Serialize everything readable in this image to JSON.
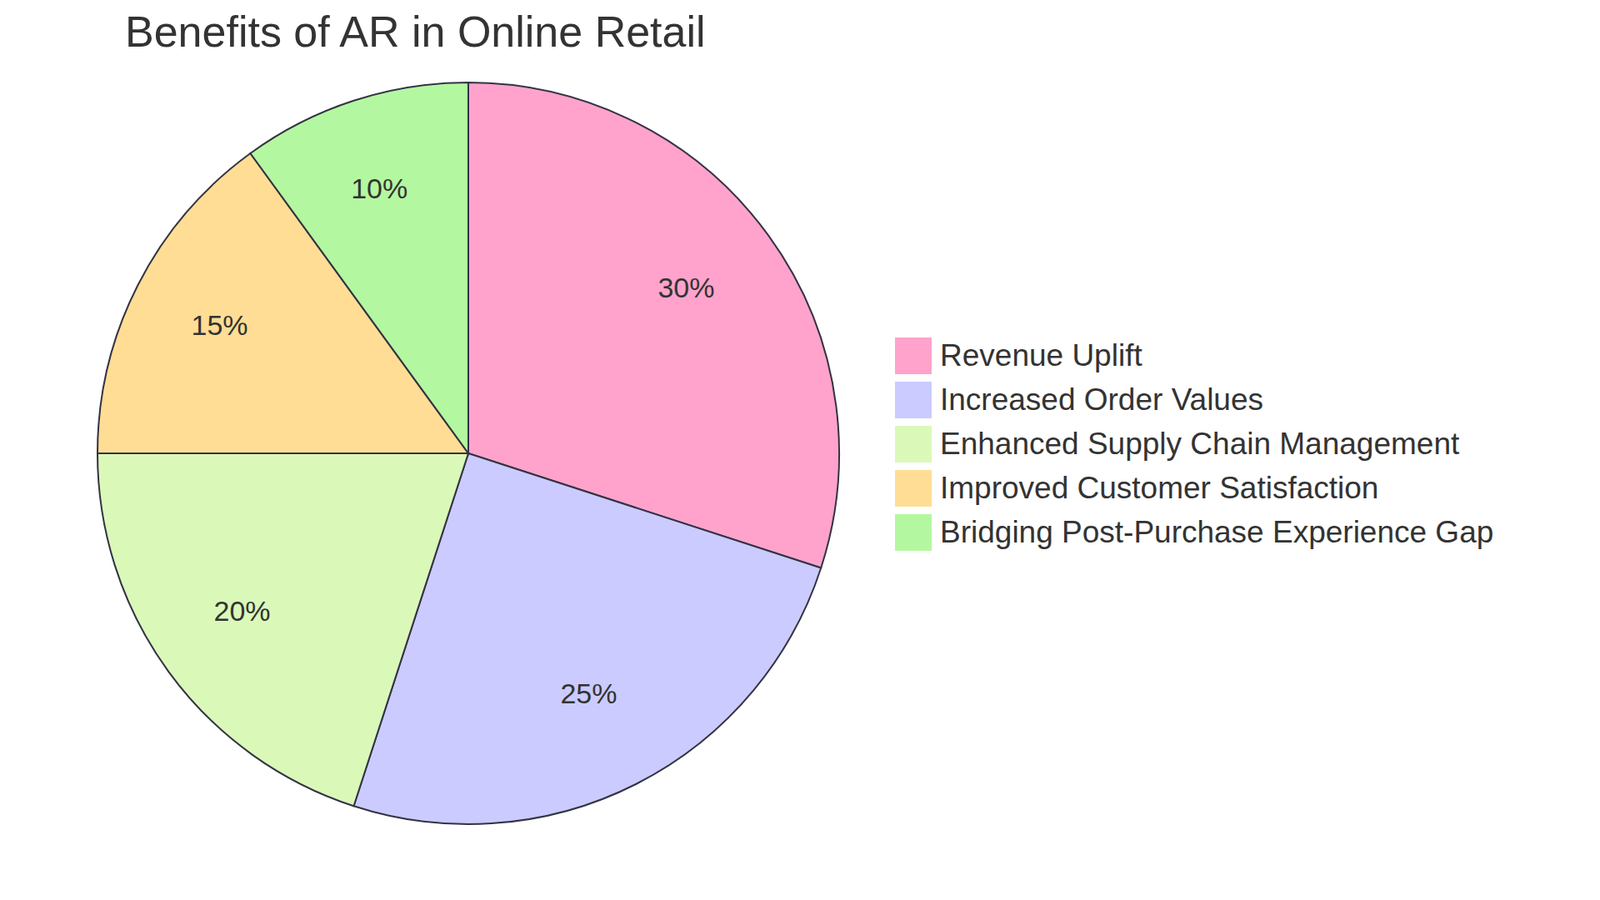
{
  "chart_data": {
    "type": "pie",
    "title": "Benefits of AR in Online Retail",
    "categories": [
      "Revenue Uplift",
      "Increased Order Values",
      "Enhanced Supply Chain Management",
      "Improved Customer Satisfaction",
      "Bridging Post-Purchase Experience Gap"
    ],
    "values": [
      30,
      25,
      20,
      15,
      10
    ],
    "value_labels": [
      "30%",
      "25%",
      "20%",
      "15%",
      "10%"
    ],
    "colors": [
      "#ffa3cc",
      "#cbcbff",
      "#daf9b9",
      "#ffdd94",
      "#b3f8a0"
    ],
    "data_labels": true,
    "legend": "right"
  }
}
